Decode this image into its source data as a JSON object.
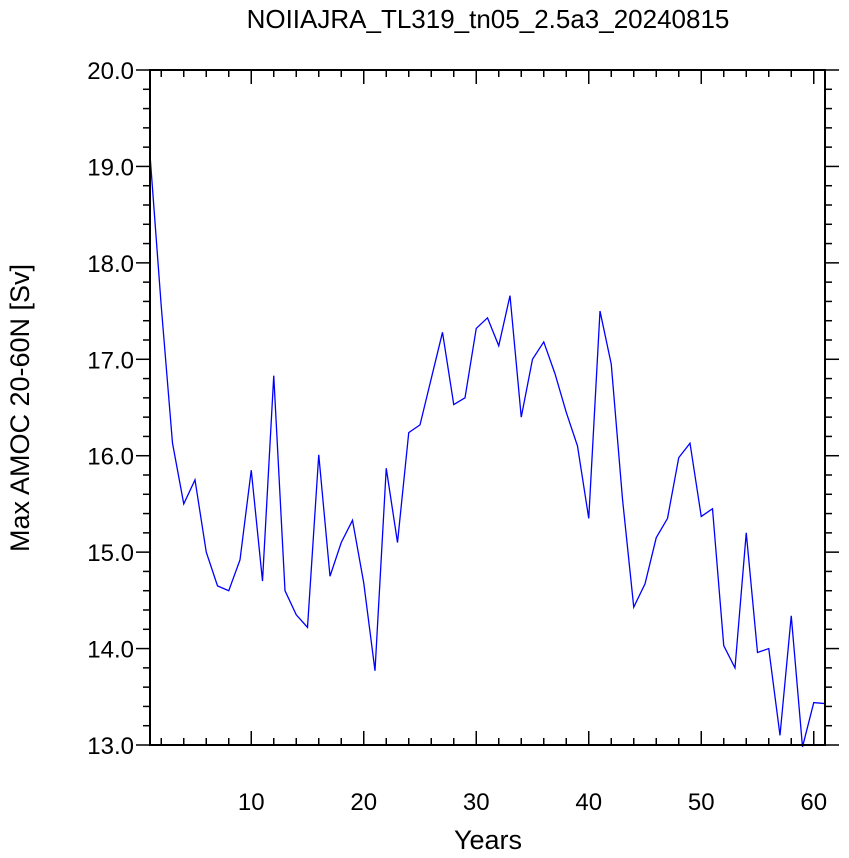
{
  "chart_data": {
    "type": "line",
    "title": "NOIIAJRA_TL319_tn05_2.5a3_20240815",
    "xlabel": "Years",
    "ylabel": "Max AMOC 20-60N [Sv]",
    "xlim": [
      1,
      61
    ],
    "ylim": [
      13.0,
      20.0
    ],
    "x_ticks": [
      10,
      20,
      30,
      40,
      50,
      60
    ],
    "x_tick_labels": [
      "10",
      "20",
      "30",
      "40",
      "50",
      "60"
    ],
    "y_ticks": [
      13.0,
      14.0,
      15.0,
      16.0,
      17.0,
      18.0,
      19.0,
      20.0
    ],
    "y_tick_labels": [
      "13.0",
      "14.0",
      "15.0",
      "16.0",
      "17.0",
      "18.0",
      "19.0",
      "20.0"
    ],
    "grid": false,
    "legend": "none",
    "line_color": "#0000ff",
    "series": [
      {
        "x": [
          1,
          2,
          3,
          4,
          5,
          6,
          7,
          8,
          9,
          10,
          11,
          12,
          13,
          14,
          15,
          16,
          17,
          18,
          19,
          20,
          21,
          22,
          23,
          24,
          25,
          26,
          27,
          28,
          29,
          30,
          31,
          32,
          33,
          34,
          35,
          36,
          37,
          38,
          39,
          40,
          41,
          42,
          43,
          44,
          45,
          46,
          47,
          48,
          49,
          50,
          51,
          52,
          53,
          54,
          55,
          56,
          57,
          58,
          59,
          60,
          61
        ],
        "values": [
          19.12,
          17.55,
          16.13,
          15.5,
          15.75,
          15.0,
          14.65,
          14.6,
          14.92,
          15.85,
          14.7,
          16.83,
          14.6,
          14.35,
          14.22,
          16.01,
          14.75,
          15.1,
          15.33,
          14.68,
          13.77,
          15.87,
          15.1,
          16.24,
          16.32,
          16.8,
          17.28,
          16.53,
          16.6,
          17.32,
          17.43,
          17.14,
          17.66,
          16.4,
          17.0,
          17.18,
          16.85,
          16.45,
          16.1,
          15.35,
          17.5,
          16.95,
          15.55,
          14.43,
          14.67,
          15.15,
          15.35,
          15.98,
          16.13,
          15.37,
          15.45,
          14.03,
          13.8,
          15.2,
          13.96,
          14.0,
          13.1,
          14.34,
          12.98,
          13.44,
          13.43
        ]
      }
    ]
  }
}
